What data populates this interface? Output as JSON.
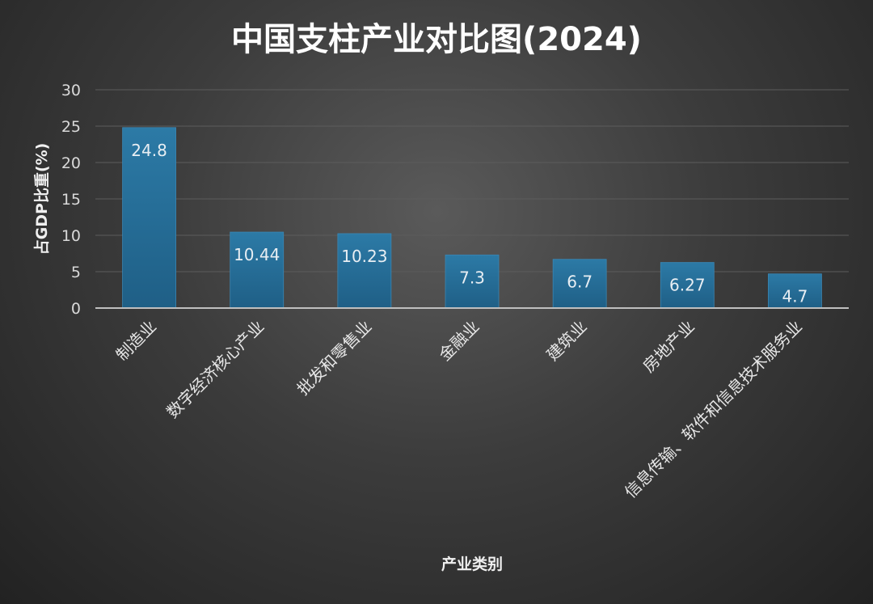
{
  "chart_data": {
    "type": "bar",
    "title": "中国支柱产业对比图(2024)",
    "xlabel": "产业类别",
    "ylabel": "占GDP比重(%)",
    "ylim": [
      0,
      30
    ],
    "yticks": [
      0,
      5,
      10,
      15,
      20,
      25,
      30
    ],
    "grid": true,
    "categories": [
      "制造业",
      "数字经济核心产业",
      "批发和零售业",
      "金融业",
      "建筑业",
      "房地产业",
      "信息传输、软件和信息技术服务业"
    ],
    "values": [
      24.8,
      10.44,
      10.23,
      7.3,
      6.7,
      6.27,
      4.7
    ],
    "value_labels": [
      "24.8",
      "10.44",
      "10.23",
      "7.3",
      "6.7",
      "6.27",
      "4.7"
    ],
    "bar_color": "#1f5f86",
    "bar_color_light": "#2c7aa6"
  }
}
